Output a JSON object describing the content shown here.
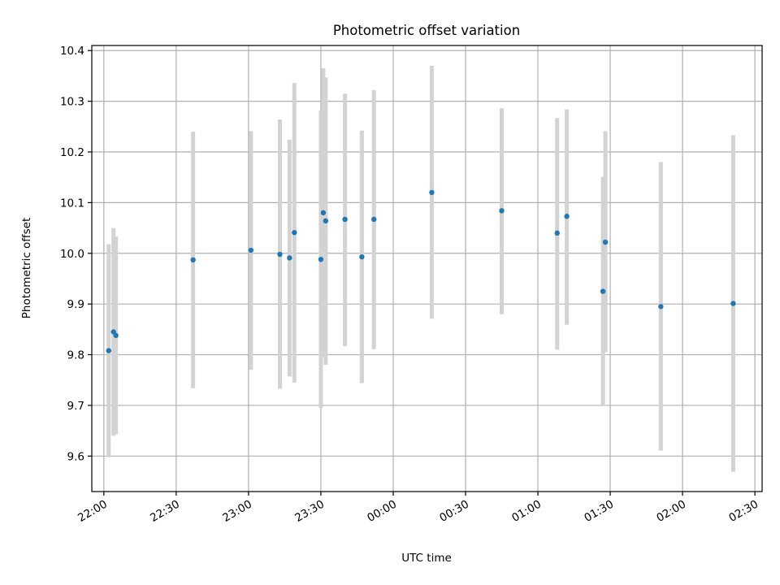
{
  "chart_data": {
    "type": "scatter",
    "title": "Photometric offset variation",
    "xlabel": "UTC time",
    "ylabel": "Photometric offset",
    "x_axis_kind": "time",
    "xlim": [
      "21:55",
      "02:33"
    ],
    "ylim": [
      9.53,
      10.41
    ],
    "x_ticks": [
      "22:00",
      "22:30",
      "23:00",
      "23:30",
      "00:00",
      "00:30",
      "01:00",
      "01:30",
      "02:00",
      "02:30"
    ],
    "y_ticks": [
      9.6,
      9.7,
      9.8,
      9.9,
      10.0,
      10.1,
      10.2,
      10.3,
      10.4
    ],
    "y_tick_labels": [
      "9.6",
      "9.7",
      "9.8",
      "9.9",
      "10.0",
      "10.1",
      "10.2",
      "10.3",
      "10.4"
    ],
    "grid": true,
    "point_color": "#1f77b4",
    "errorbar_color": "#d3d3d3",
    "points": [
      {
        "x": "22:02",
        "y": 9.808,
        "low": 9.598,
        "high": 10.018
      },
      {
        "x": "22:04",
        "y": 9.845,
        "low": 9.64,
        "high": 10.05
      },
      {
        "x": "22:05",
        "y": 9.838,
        "low": 9.643,
        "high": 10.033
      },
      {
        "x": "22:37",
        "y": 9.987,
        "low": 9.734,
        "high": 10.24
      },
      {
        "x": "23:01",
        "y": 10.006,
        "low": 9.77,
        "high": 10.241
      },
      {
        "x": "23:13",
        "y": 9.998,
        "low": 9.733,
        "high": 10.264
      },
      {
        "x": "23:17",
        "y": 9.991,
        "low": 9.757,
        "high": 10.224
      },
      {
        "x": "23:19",
        "y": 10.041,
        "low": 9.745,
        "high": 10.336
      },
      {
        "x": "23:30",
        "y": 9.988,
        "low": 9.695,
        "high": 10.282
      },
      {
        "x": "23:31",
        "y": 10.08,
        "low": 9.795,
        "high": 10.365
      },
      {
        "x": "23:32",
        "y": 10.064,
        "low": 9.78,
        "high": 10.347
      },
      {
        "x": "23:40",
        "y": 10.067,
        "low": 9.817,
        "high": 10.315
      },
      {
        "x": "23:47",
        "y": 9.993,
        "low": 9.744,
        "high": 10.242
      },
      {
        "x": "23:52",
        "y": 10.067,
        "low": 9.811,
        "high": 10.322
      },
      {
        "x": "00:16",
        "y": 10.12,
        "low": 9.871,
        "high": 10.37
      },
      {
        "x": "00:45",
        "y": 10.084,
        "low": 9.88,
        "high": 10.286
      },
      {
        "x": "01:08",
        "y": 10.04,
        "low": 9.81,
        "high": 10.267
      },
      {
        "x": "01:12",
        "y": 10.073,
        "low": 9.859,
        "high": 10.284
      },
      {
        "x": "01:27",
        "y": 9.925,
        "low": 9.7,
        "high": 10.151
      },
      {
        "x": "01:28",
        "y": 10.022,
        "low": 9.805,
        "high": 10.241
      },
      {
        "x": "01:51",
        "y": 9.895,
        "low": 9.611,
        "high": 10.18
      },
      {
        "x": "02:21",
        "y": 9.901,
        "low": 9.569,
        "high": 10.233
      }
    ]
  }
}
